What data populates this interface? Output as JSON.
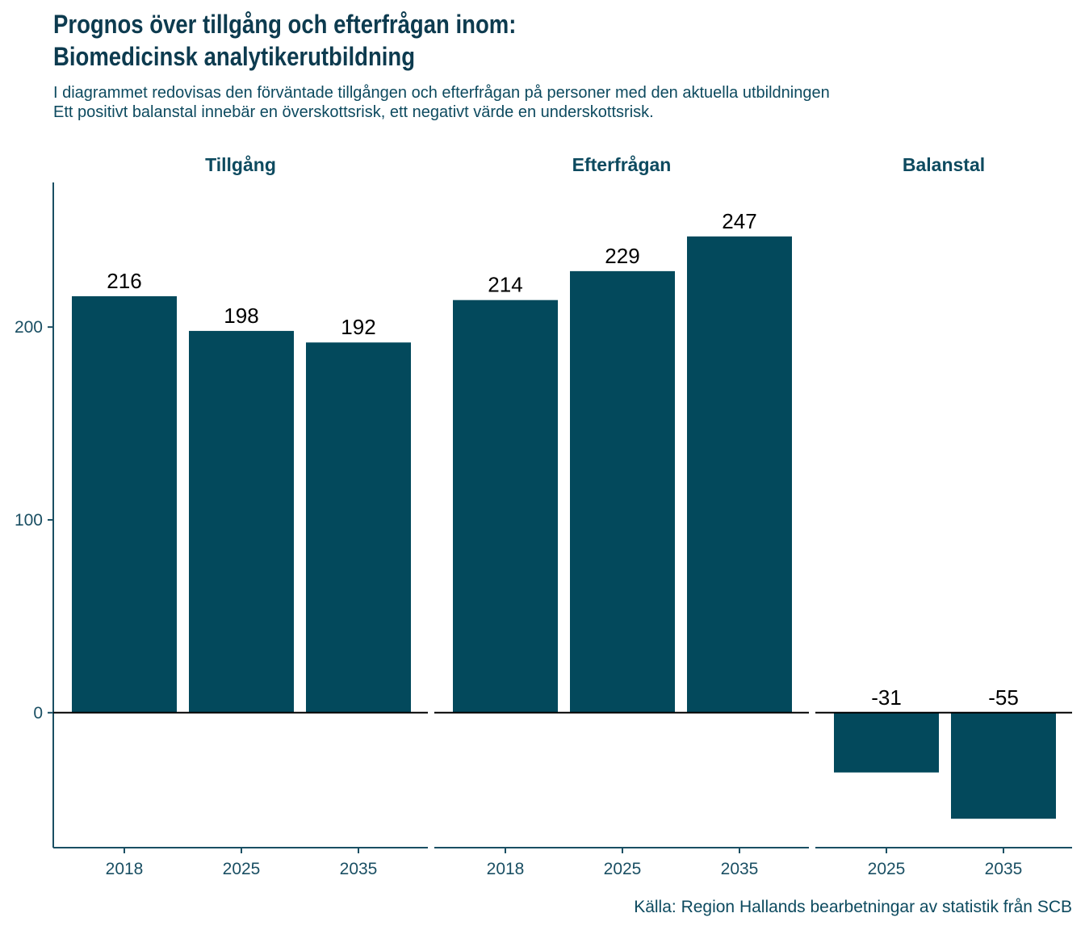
{
  "title_lines": [
    "Prognos över tillgång och efterfrågan inom:",
    "Biomedicinsk analytikerutbildning"
  ],
  "subtitle_lines": [
    "I diagrammet redovisas den förväntade tillgången och efterfrågan på personer med den aktuella utbildningen",
    "Ett positivt balanstal innebär en överskottsrisk, ett negativt värde en underskottsrisk."
  ],
  "source": "Källa: Region Hallands bearbetningar av statistik från SCB",
  "colors": {
    "bar": "#03495c",
    "text": "#0d4a5f",
    "axis": "#1a4f63",
    "zero_line": "#000000"
  },
  "chart_data": {
    "type": "bar",
    "ylim": [
      -70,
      275
    ],
    "yticks": [
      0,
      100,
      200
    ],
    "grid": false,
    "panels": [
      {
        "name": "Tillgång",
        "categories": [
          "2018",
          "2025",
          "2035"
        ],
        "values": [
          216,
          198,
          192
        ]
      },
      {
        "name": "Efterfrågan",
        "categories": [
          "2018",
          "2025",
          "2035"
        ],
        "values": [
          214,
          229,
          247
        ]
      },
      {
        "name": "Balanstal",
        "categories": [
          "2025",
          "2035"
        ],
        "values": [
          -31,
          -55
        ]
      }
    ]
  }
}
